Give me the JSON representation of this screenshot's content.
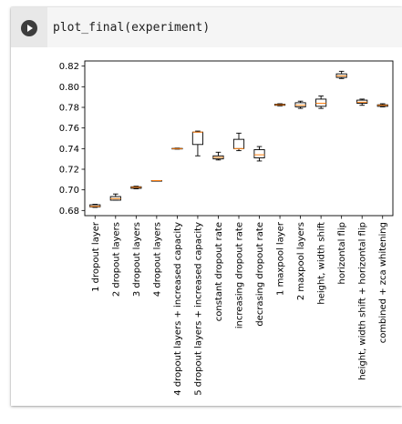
{
  "cell": {
    "code": "plot_final(experiment)",
    "run_icon": "play-icon"
  },
  "chart_data": {
    "type": "box",
    "title": "",
    "xlabel": "",
    "ylabel": "",
    "ylim": [
      0.675,
      0.825
    ],
    "yticks": [
      "0.68",
      "0.70",
      "0.72",
      "0.74",
      "0.76",
      "0.78",
      "0.80",
      "0.82"
    ],
    "grid": false,
    "colors": {
      "box": "#000000",
      "median": "#ff7f0e"
    },
    "categories": [
      "1 dropout layer",
      "2 dropout layers",
      "3 dropout layers",
      "4 dropout layers",
      "4 dropout layers + increased capacity",
      "5 dropout layers + increased capacity",
      "constant dropout rate",
      "increasing dropout rate",
      "decrasing dropout rate",
      "1 maxpool layer",
      "2 maxpool layers",
      "height, width shift",
      "horizontal flip",
      "height, width shift + horizontal flip",
      "combined + zca whitening"
    ],
    "boxes": [
      {
        "min": 0.683,
        "q1": 0.6835,
        "median": 0.684,
        "q3": 0.6855,
        "max": 0.686
      },
      {
        "min": 0.69,
        "q1": 0.69,
        "median": 0.6915,
        "q3": 0.6935,
        "max": 0.696
      },
      {
        "min": 0.701,
        "q1": 0.7015,
        "median": 0.7025,
        "q3": 0.703,
        "max": 0.7035
      },
      {
        "min": 0.709,
        "q1": 0.709,
        "median": 0.709,
        "q3": 0.709,
        "max": 0.709
      },
      {
        "min": 0.7395,
        "q1": 0.7398,
        "median": 0.74,
        "q3": 0.7402,
        "max": 0.7405
      },
      {
        "min": 0.733,
        "q1": 0.744,
        "median": 0.756,
        "q3": 0.756,
        "max": 0.757
      },
      {
        "min": 0.729,
        "q1": 0.73,
        "median": 0.7315,
        "q3": 0.733,
        "max": 0.7365
      },
      {
        "min": 0.738,
        "q1": 0.74,
        "median": 0.74,
        "q3": 0.749,
        "max": 0.755
      },
      {
        "min": 0.728,
        "q1": 0.731,
        "median": 0.734,
        "q3": 0.739,
        "max": 0.742
      },
      {
        "min": 0.7815,
        "q1": 0.782,
        "median": 0.7825,
        "q3": 0.783,
        "max": 0.7835
      },
      {
        "min": 0.779,
        "q1": 0.7805,
        "median": 0.782,
        "q3": 0.7845,
        "max": 0.786
      },
      {
        "min": 0.779,
        "q1": 0.781,
        "median": 0.784,
        "q3": 0.788,
        "max": 0.791
      },
      {
        "min": 0.808,
        "q1": 0.809,
        "median": 0.8105,
        "q3": 0.8125,
        "max": 0.815
      },
      {
        "min": 0.782,
        "q1": 0.784,
        "median": 0.785,
        "q3": 0.787,
        "max": 0.788
      },
      {
        "min": 0.7805,
        "q1": 0.781,
        "median": 0.782,
        "q3": 0.7825,
        "max": 0.7835
      }
    ]
  }
}
